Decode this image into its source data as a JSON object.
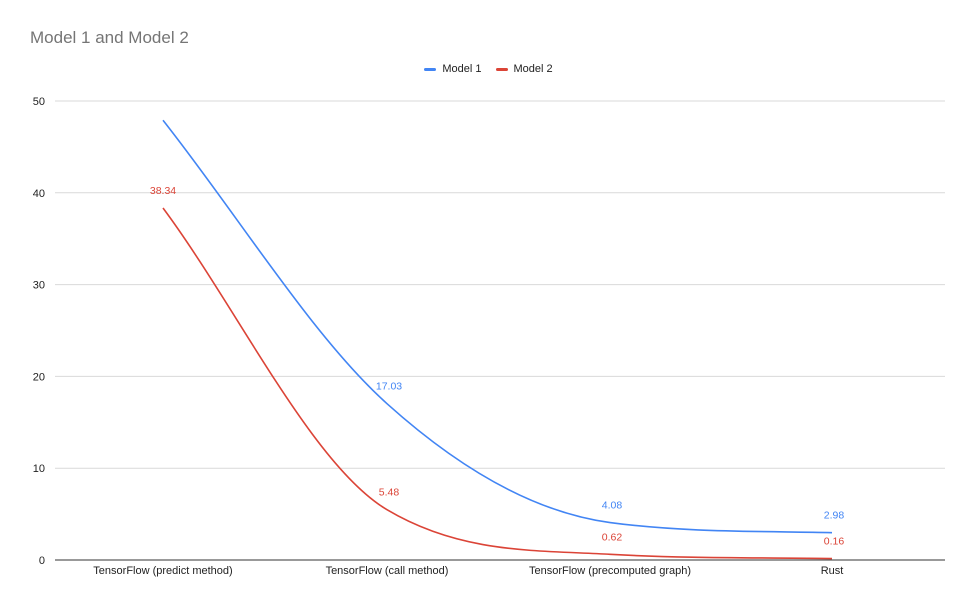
{
  "chart_data": {
    "type": "line",
    "title": "Model 1 and Model 2",
    "xlabel": "",
    "ylabel": "",
    "categories": [
      "TensorFlow (predict method)",
      "TensorFlow (call method)",
      "TensorFlow (precomputed graph)",
      "Rust"
    ],
    "ylim": [
      0,
      50
    ],
    "yticks": [
      0,
      10,
      20,
      30,
      40,
      50
    ],
    "grid": true,
    "legend_position": "top-center",
    "series": [
      {
        "name": "Model 1",
        "color": "#4285f4",
        "values": [
          47.9,
          17.03,
          4.08,
          2.98
        ],
        "data_labels": [
          "",
          "17.03",
          "4.08",
          "2.98"
        ]
      },
      {
        "name": "Model 2",
        "color": "#db4437",
        "values": [
          38.34,
          5.48,
          0.62,
          0.16
        ],
        "data_labels": [
          "38.34",
          "5.48",
          "0.62",
          "0.16"
        ]
      }
    ]
  }
}
